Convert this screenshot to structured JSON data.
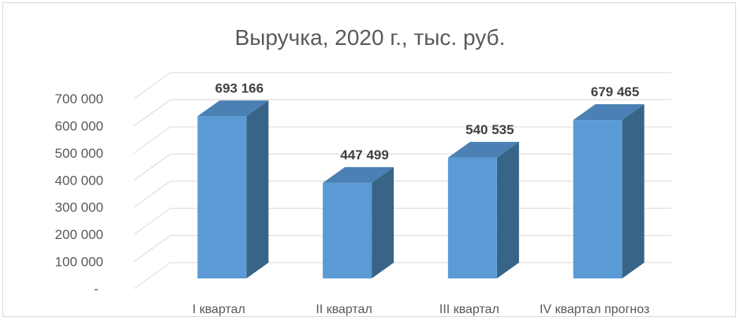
{
  "chart_data": {
    "type": "bar",
    "title": "Выручка, 2020 г., тыс. руб.",
    "categories": [
      "I квартал",
      "II квартал",
      "III квартал",
      "IV квартал прогноз"
    ],
    "values": [
      693166,
      447499,
      540535,
      679465
    ],
    "data_labels": [
      "693 166",
      "447 499",
      "540 535",
      "679 465"
    ],
    "y_ticks": [
      0,
      100000,
      200000,
      300000,
      400000,
      500000,
      600000,
      700000
    ],
    "y_tick_labels": [
      "-",
      "100 000",
      "200 000",
      "300 000",
      "400 000",
      "500 000",
      "600 000",
      "700 000"
    ],
    "ylim": [
      0,
      700000
    ],
    "grid": true,
    "legend": "none",
    "three_d": true,
    "colors": {
      "bar_front": "#5b9bd5",
      "bar_side": "#386488",
      "bar_top": "#4a80b3",
      "grid": "#d9d9d9"
    }
  }
}
